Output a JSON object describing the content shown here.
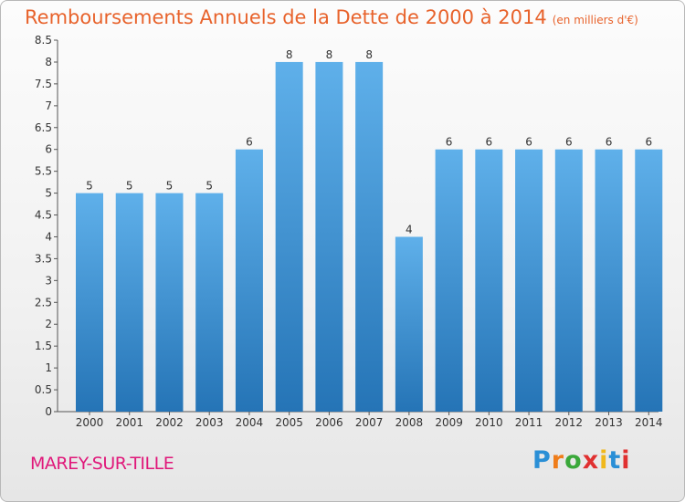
{
  "title": "Remboursements Annuels de la Dette de 2000 à 2014",
  "unit": "(en milliers d'€)",
  "commune": "MAREY-SUR-TILLE",
  "brand": {
    "letters": [
      "P",
      "r",
      "o",
      "x",
      "i",
      "t",
      "i"
    ],
    "colors": [
      "#2a8fd6",
      "#ef7d1a",
      "#3aa83a",
      "#e03030",
      "#f0b81c",
      "#2a8fd6",
      "#e03030"
    ]
  },
  "colors": {
    "bar_top": "#5fb0ea",
    "bar_bottom": "#2574b6",
    "title": "#e8632c",
    "commune": "#e0187a"
  },
  "chart_data": {
    "type": "bar",
    "title": "Remboursements Annuels de la Dette de 2000 à 2014",
    "subtitle": "(en milliers d'€)",
    "categories": [
      "2000",
      "2001",
      "2002",
      "2003",
      "2004",
      "2005",
      "2006",
      "2007",
      "2008",
      "2009",
      "2010",
      "2011",
      "2012",
      "2013",
      "2014"
    ],
    "values": [
      5,
      5,
      5,
      5,
      6,
      8,
      8,
      8,
      4,
      6,
      6,
      6,
      6,
      6,
      6
    ],
    "labels": [
      "5",
      "5",
      "5",
      "5",
      "6",
      "8",
      "8",
      "8",
      "4",
      "6",
      "6",
      "6",
      "6",
      "6",
      "6"
    ],
    "ylim": [
      0,
      8.5
    ],
    "yticks": [
      "0",
      "0.5",
      "1",
      "1.5",
      "2",
      "2.5",
      "3",
      "3.5",
      "4",
      "4.5",
      "5",
      "5.5",
      "6",
      "6.5",
      "7",
      "7.5",
      "8",
      "8.5"
    ],
    "grid": false,
    "xlabel": "",
    "ylabel": ""
  }
}
